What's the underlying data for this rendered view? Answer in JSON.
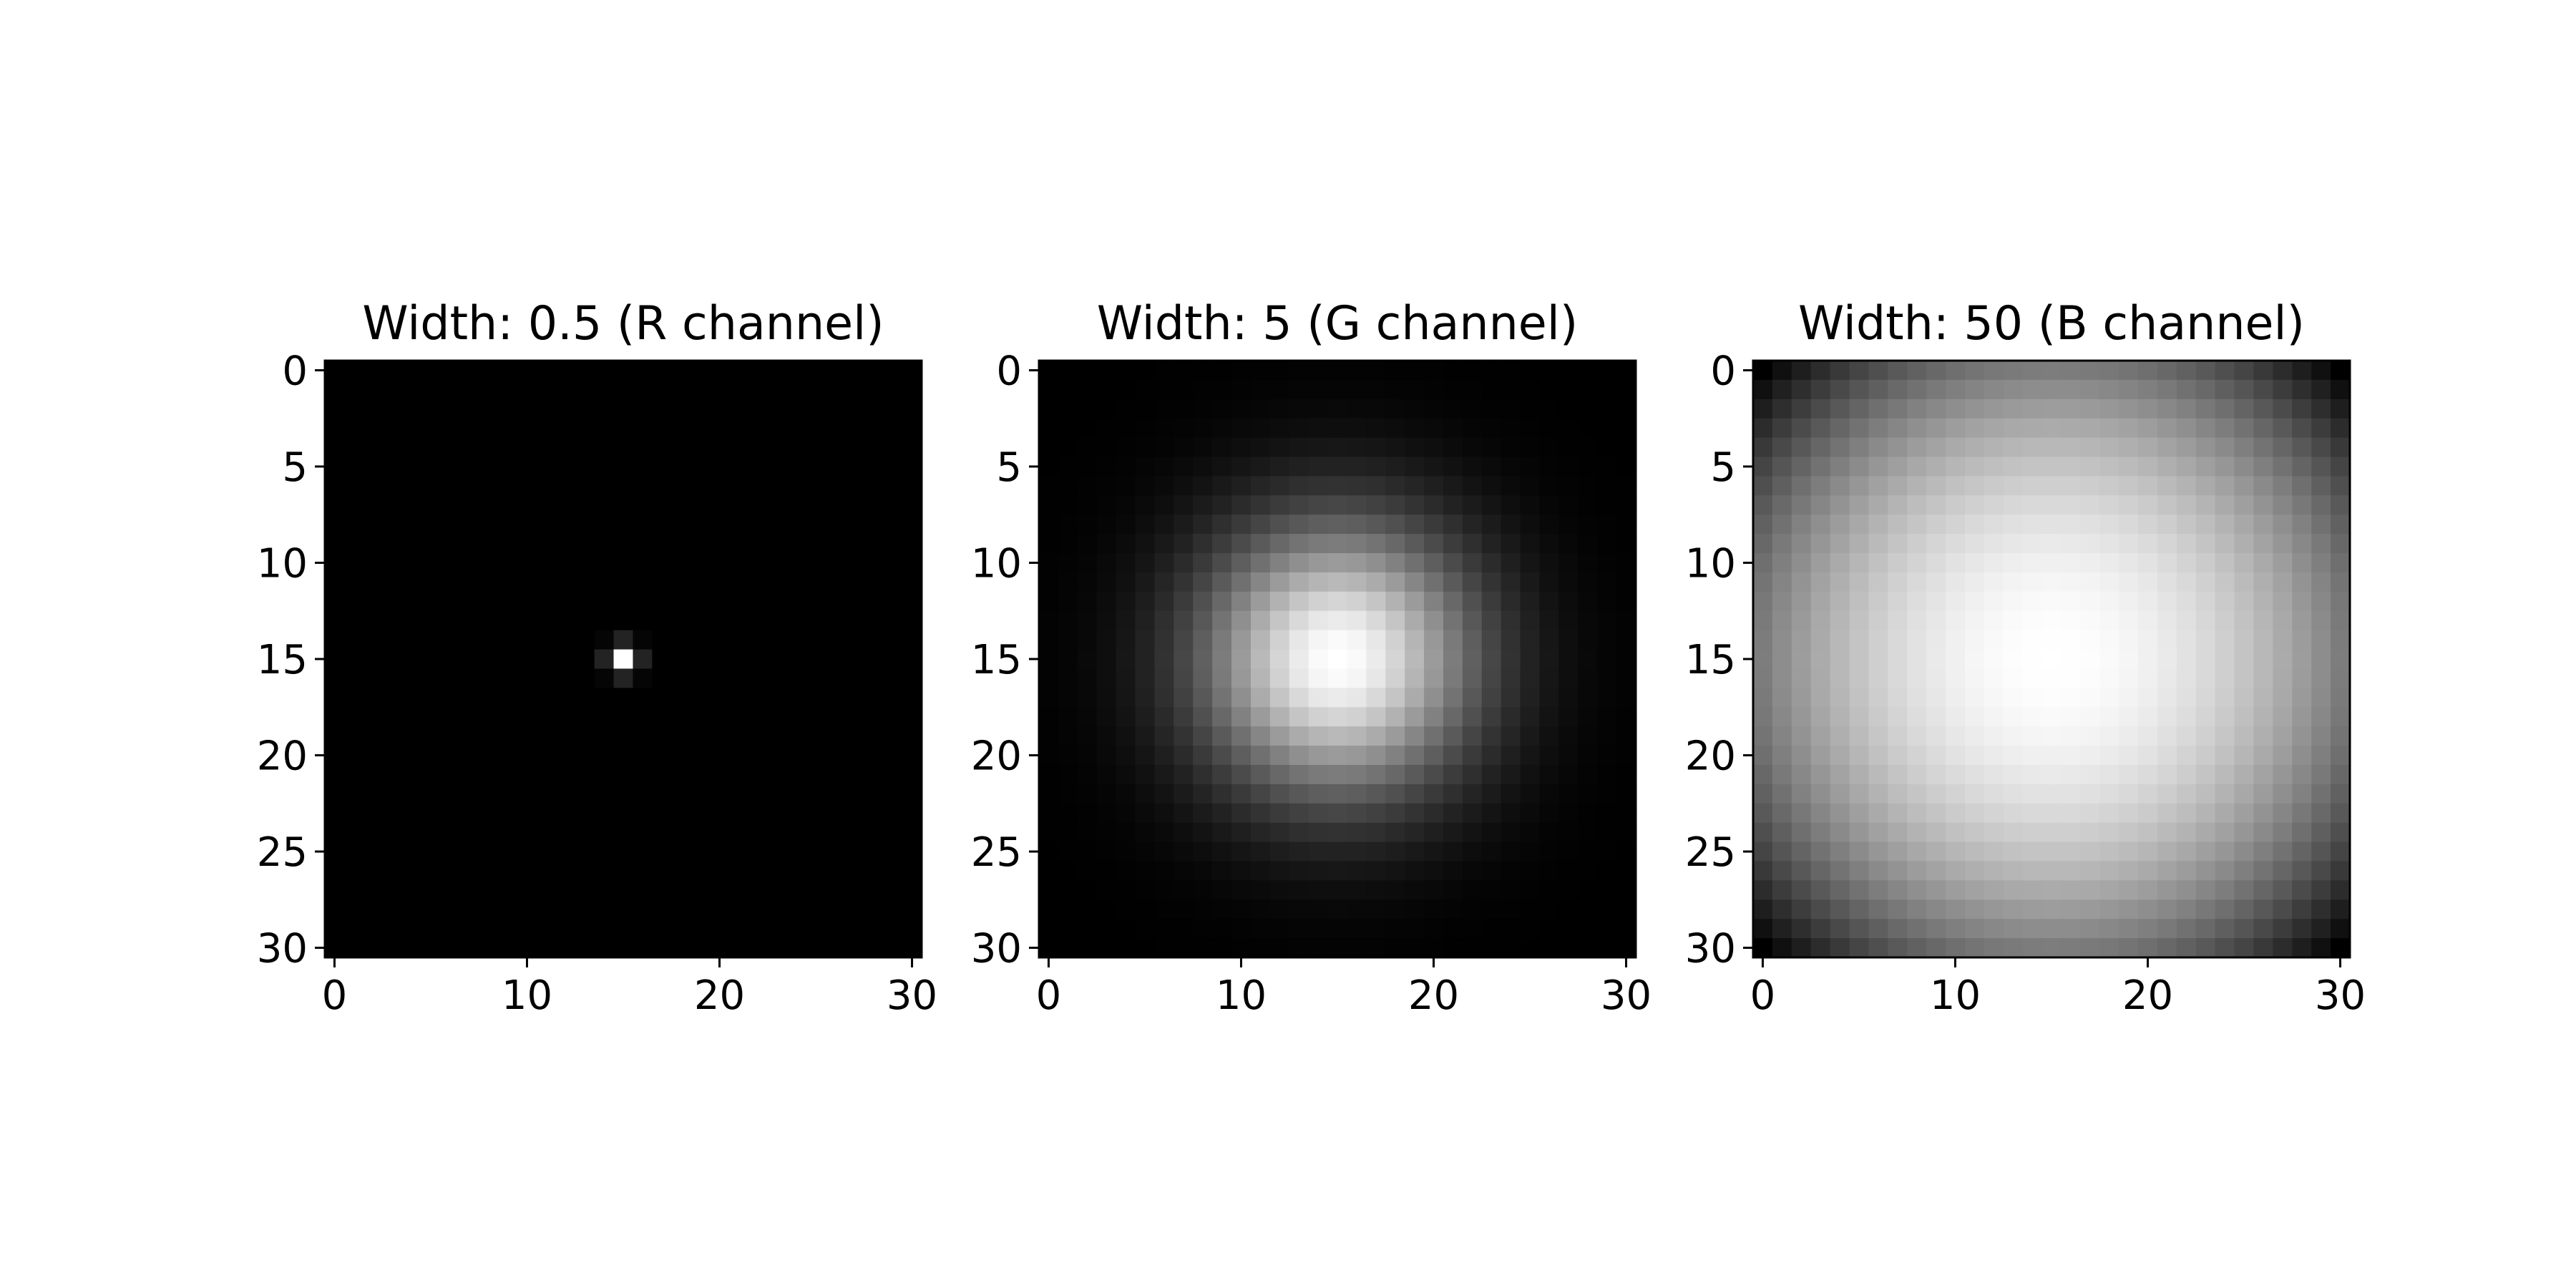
{
  "chart_data": [
    {
      "type": "heatmap",
      "title": "Width: 0.5 (R channel)",
      "xlabel": "",
      "ylabel": "",
      "grid_size": 31,
      "center": [
        15,
        15
      ],
      "width": 0.5,
      "xlim": [
        0,
        30
      ],
      "ylim": [
        30,
        0
      ],
      "xticks": [
        0,
        10,
        20,
        30
      ],
      "yticks": [
        0,
        5,
        10,
        15,
        20,
        25,
        30
      ],
      "colormap": "gray",
      "grid": false
    },
    {
      "type": "heatmap",
      "title": "Width: 5 (G channel)",
      "xlabel": "",
      "ylabel": "",
      "grid_size": 31,
      "center": [
        15,
        15
      ],
      "width": 5,
      "xlim": [
        0,
        30
      ],
      "ylim": [
        30,
        0
      ],
      "xticks": [
        0,
        10,
        20,
        30
      ],
      "yticks": [
        0,
        5,
        10,
        15,
        20,
        25,
        30
      ],
      "colormap": "gray",
      "grid": false
    },
    {
      "type": "heatmap",
      "title": "Width: 50 (B channel)",
      "xlabel": "",
      "ylabel": "",
      "grid_size": 31,
      "center": [
        15,
        15
      ],
      "width": 50,
      "xlim": [
        0,
        30
      ],
      "ylim": [
        30,
        0
      ],
      "xticks": [
        0,
        10,
        20,
        30
      ],
      "yticks": [
        0,
        5,
        10,
        15,
        20,
        25,
        30
      ],
      "colormap": "gray",
      "grid": false
    }
  ],
  "colors": {
    "background": "#ffffff",
    "axis": "#000000",
    "low": "#000000",
    "high": "#ffffff"
  }
}
